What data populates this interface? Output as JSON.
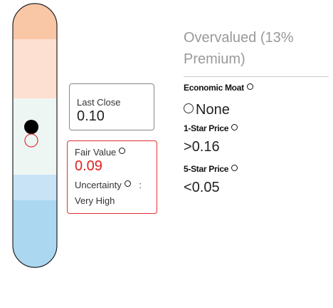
{
  "valuation": "Overvalued (13% Premium)",
  "last_close": {
    "label": "Last Close",
    "value": "0.10"
  },
  "fair_value": {
    "label": "Fair Value",
    "value": "0.09"
  },
  "uncertainty": {
    "label": "Uncertainty",
    "separator": ":",
    "value": "Very High"
  },
  "economic_moat": {
    "label": "Economic Moat",
    "value": "None"
  },
  "one_star_price": {
    "label": "1-Star Price",
    "symbol": ">",
    "value": "0.16"
  },
  "five_star_price": {
    "label": "5-Star Price",
    "symbol": "<",
    "value": "0.05"
  }
}
